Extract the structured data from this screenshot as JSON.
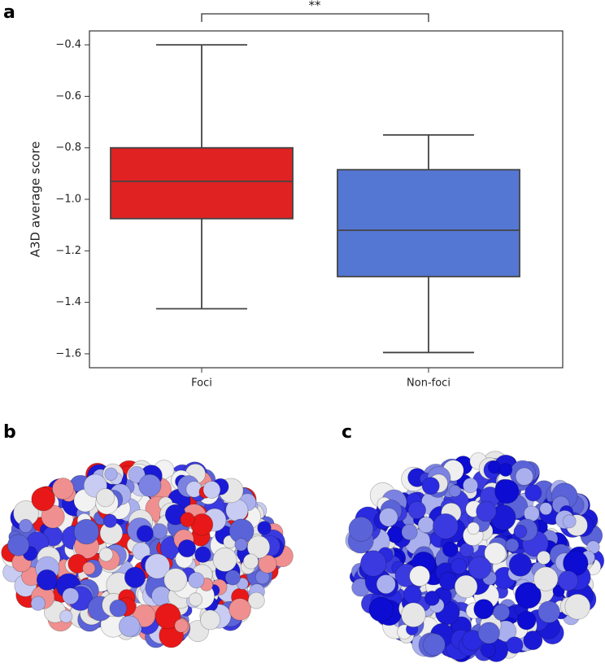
{
  "chart_data": {
    "type": "box",
    "ylabel": "A3D average score",
    "annotation": "**",
    "panel_labels": [
      "a",
      "b",
      "c"
    ],
    "series": [
      {
        "name": "Foci",
        "color": "#e02222",
        "min": -1.425,
        "q1": -1.075,
        "median": -0.93,
        "q3": -0.8,
        "max": -0.4
      },
      {
        "name": "Non-foci",
        "color": "#5577d4",
        "min": -1.595,
        "q1": -1.3,
        "median": -1.12,
        "q3": -0.885,
        "max": -0.75
      }
    ],
    "ylim": [
      -1.654,
      -0.346
    ],
    "yticks": [
      {
        "value": -0.4,
        "label": "−0.4"
      },
      {
        "value": -0.6,
        "label": "−0.6"
      },
      {
        "value": -0.8,
        "label": "−0.8"
      },
      {
        "value": -1.0,
        "label": "−1.0"
      },
      {
        "value": -1.2,
        "label": "−1.2"
      },
      {
        "value": -1.4,
        "label": "−1.4"
      },
      {
        "value": -1.6,
        "label": "−1.6"
      }
    ],
    "grid": false
  }
}
